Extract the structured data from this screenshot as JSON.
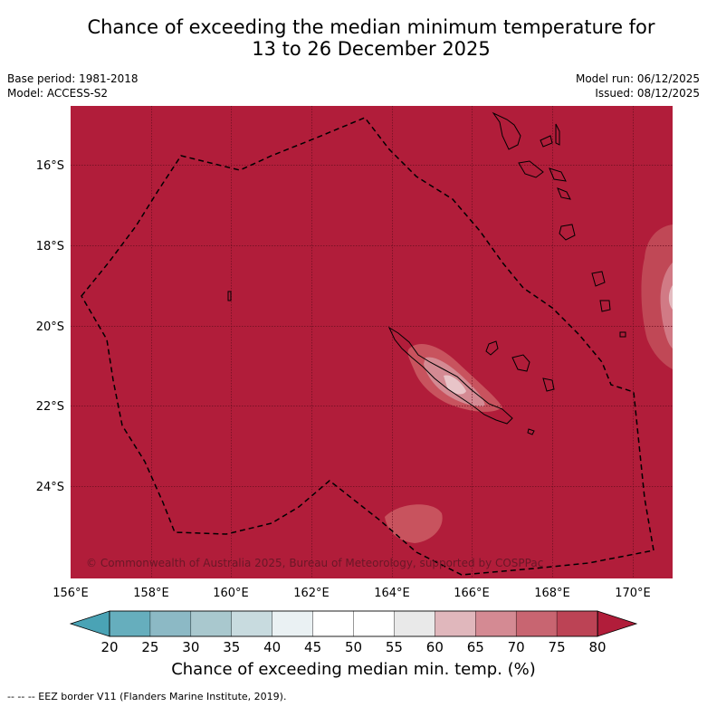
{
  "title": {
    "line1": "Chance of exceeding the median minimum temperature for",
    "line2": "13 to 26 December 2025"
  },
  "info_left": {
    "base_period": "Base period: 1981-2018",
    "model": "Model: ACCESS-S2"
  },
  "info_right": {
    "model_run": "Model run: 06/12/2025",
    "issued": "Issued: 08/12/2025"
  },
  "map": {
    "lat_labels": [
      "16°S",
      "18°S",
      "20°S",
      "22°S",
      "24°S"
    ],
    "lon_labels": [
      "156°E",
      "158°E",
      "160°E",
      "162°E",
      "164°E",
      "166°E",
      "168°E",
      "170°E"
    ],
    "copyright": "© Commonwealth of Australia 2025, Bureau of Meteorology, supported by COSPPac",
    "background_color": "#b11d3a"
  },
  "colorbar": {
    "ticks": [
      "20",
      "25",
      "30",
      "35",
      "40",
      "45",
      "50",
      "55",
      "60",
      "65",
      "70",
      "75",
      "80"
    ],
    "colors": [
      "#66aebd",
      "#8cb9c5",
      "#a9c8ce",
      "#c8dbdf",
      "#eaf1f3",
      "#ffffff",
      "#ffffff",
      "#e9e9e9",
      "#e0b7bc",
      "#d48a93",
      "#c86571",
      "#bc4355"
    ],
    "label": "Chance of exceeding median min. temp. (%)"
  },
  "footer": "--  --  -- EEZ border V11 (Flanders Marine Institute, 2019)."
}
